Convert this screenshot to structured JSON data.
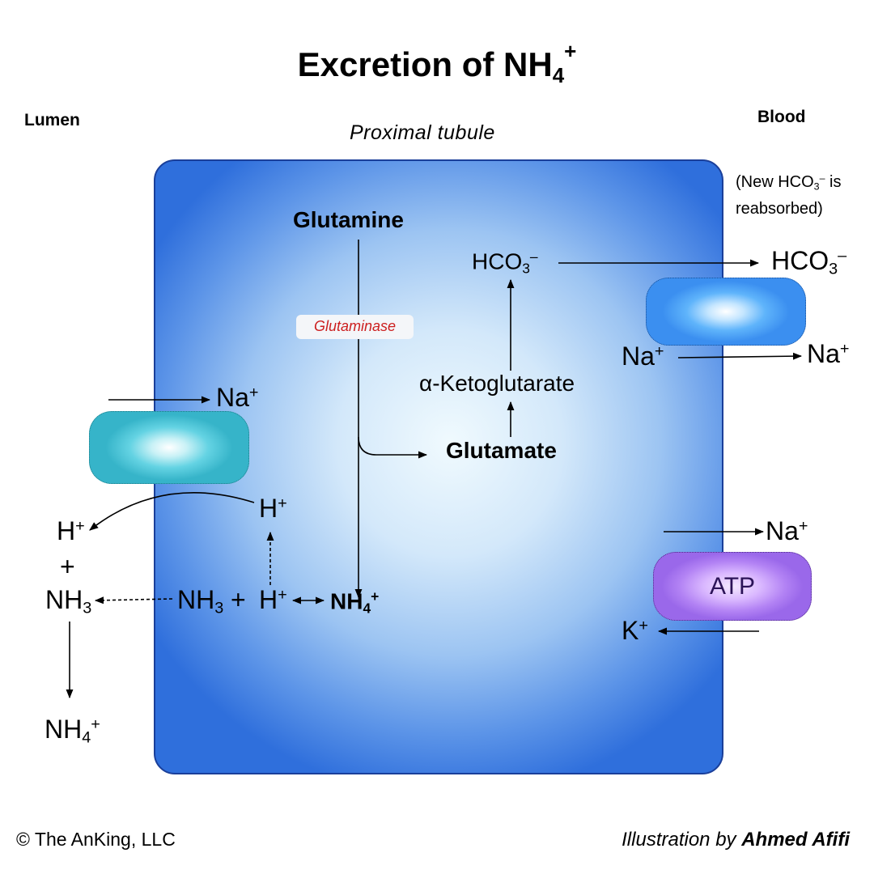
{
  "title": {
    "text": "Excretion of NH",
    "sub": "4",
    "sup": "+"
  },
  "lumen_label": "Lumen",
  "blood_label": "Blood",
  "cell_label": "Proximal tubule",
  "blood_note": {
    "line1_pre": "(New HCO",
    "sub": "3",
    "sup": "–",
    "line1_post": " is",
    "line2": "reabsorbed)"
  },
  "nodes": {
    "glutamine": "Glutamine",
    "glutaminase": "Glutaminase",
    "glutamate": "Glutamate",
    "alpha_ketoglutarate": "α-Ketoglutarate",
    "hco3_cell": {
      "base": "HCO",
      "sub": "3",
      "sup": "–"
    },
    "hco3_blood": {
      "base": "HCO",
      "sub": "3",
      "sup": "–"
    },
    "na_blood_in": {
      "base": "Na",
      "sup": "+"
    },
    "na_blood_out": {
      "base": "Na",
      "sup": "+"
    },
    "na_lumen": {
      "base": "Na",
      "sup": "+"
    },
    "h_cell": {
      "base": "H",
      "sup": "+"
    },
    "h_lumen": {
      "base": "H",
      "sup": "+"
    },
    "plus_lumen": "+",
    "nh3_lumen": {
      "base": "NH",
      "sub": "3"
    },
    "nh4_lumen": {
      "base": "NH",
      "sub": "4",
      "sup": "+"
    },
    "nh3_cell": {
      "base": "NH",
      "sub": "3"
    },
    "plus_cell": "+",
    "h_cell_2": {
      "base": "H",
      "sup": "+"
    },
    "nh4_cell": {
      "base": "NH",
      "sub": "4",
      "sup": "+"
    },
    "na_pump": {
      "base": "Na",
      "sup": "+"
    },
    "k_pump": {
      "base": "K",
      "sup": "+"
    }
  },
  "atp_label": "ATP",
  "footer": {
    "copyright": "© The AnKing, LLC",
    "credit_prefix": "Illustration by ",
    "credit_name": "Ahmed Afifi"
  },
  "colors": {
    "cell_fill": "#5d95e8",
    "enzyme_text": "#cc1f1f",
    "atp_pump": "#b282f4",
    "na_exchanger": "#64d3e3",
    "hco3_transporter": "#5fb4fb"
  }
}
